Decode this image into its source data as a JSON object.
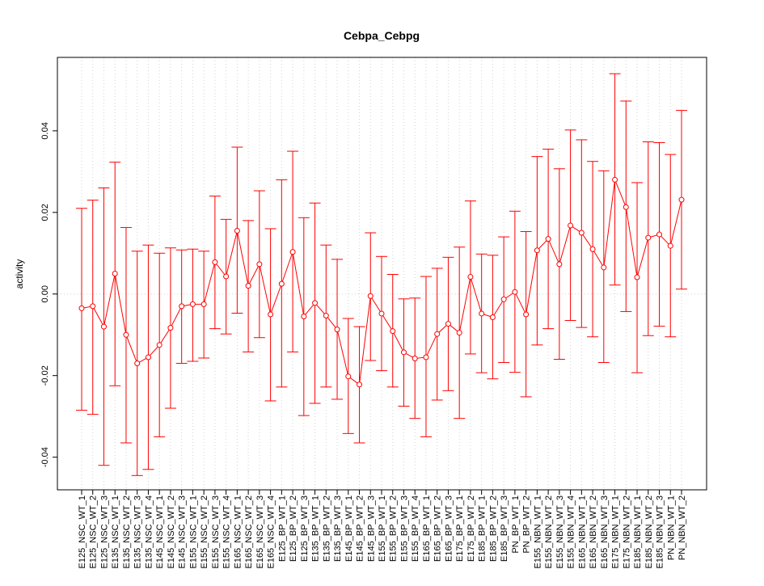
{
  "chart_data": {
    "type": "line",
    "title": "Cebpa_Cebpg",
    "xlabel": "",
    "ylabel": "activity",
    "ylim": [
      -0.048,
      0.058
    ],
    "yticks": [
      -0.04,
      -0.02,
      0.0,
      0.02,
      0.04
    ],
    "ytick_labels": [
      "-0.04",
      "-0.02",
      "0.00",
      "0.02",
      "0.04"
    ],
    "grid": true,
    "colors": {
      "series": "#ff0000",
      "grid": "#d3d3d3",
      "zero_line": "#d3d3d3"
    },
    "categories": [
      "E125_NSC_WT_1",
      "E125_NSC_WT_2",
      "E125_NSC_WT_3",
      "E135_NSC_WT_1",
      "E135_NSC_WT_2",
      "E135_NSC_WT_3",
      "E135_NSC_WT_4",
      "E145_NSC_WT_1",
      "E145_NSC_WT_2",
      "E145_NSC_WT_3",
      "E155_NSC_WT_1",
      "E155_NSC_WT_2",
      "E155_NSC_WT_3",
      "E155_NSC_WT_4",
      "E165_NSC_WT_1",
      "E165_NSC_WT_2",
      "E165_NSC_WT_3",
      "E165_NSC_WT_4",
      "E125_BP_WT_1",
      "E125_BP_WT_2",
      "E125_BP_WT_3",
      "E135_BP_WT_1",
      "E135_BP_WT_2",
      "E135_BP_WT_3",
      "E145_BP_WT_1",
      "E145_BP_WT_2",
      "E145_BP_WT_3",
      "E155_BP_WT_1",
      "E155_BP_WT_2",
      "E155_BP_WT_3",
      "E155_BP_WT_4",
      "E165_BP_WT_1",
      "E165_BP_WT_2",
      "E165_BP_WT_3",
      "E175_BP_WT_1",
      "E175_BP_WT_2",
      "E185_BP_WT_1",
      "E185_BP_WT_2",
      "E185_BP_WT_3",
      "PN_BP_WT_1",
      "PN_BP_WT_2",
      "E155_NBN_WT_1",
      "E155_NBN_WT_2",
      "E155_NBN_WT_3",
      "E155_NBN_WT_4",
      "E165_NBN_WT_1",
      "E165_NBN_WT_2",
      "E165_NBN_WT_3",
      "E175_NBN_WT_1",
      "E175_NBN_WT_2",
      "E185_NBN_WT_1",
      "E185_NBN_WT_2",
      "E185_NBN_WT_3",
      "PN_NBN_WT_1",
      "PN_NBN_WT_2"
    ],
    "series": [
      {
        "values": [
          -0.0035,
          -0.003,
          -0.008,
          0.005,
          -0.01,
          -0.017,
          -0.0155,
          -0.0125,
          -0.0083,
          -0.003,
          -0.0025,
          -0.0025,
          0.0078,
          0.0043,
          0.0155,
          0.002,
          0.0073,
          -0.005,
          0.0025,
          0.0103,
          -0.0055,
          -0.0022,
          -0.0053,
          -0.0087,
          -0.0202,
          -0.0222,
          -0.0005,
          -0.0048,
          -0.0091,
          -0.0143,
          -0.0158,
          -0.0155,
          -0.0098,
          -0.0073,
          -0.0095,
          0.0042,
          -0.0048,
          -0.0057,
          -0.0013,
          0.0005,
          -0.005,
          0.0107,
          0.0135,
          0.0073,
          0.0168,
          0.015,
          0.011,
          0.0065,
          0.028,
          0.0213,
          0.0041,
          0.0138,
          0.0146,
          0.0118,
          0.0231
        ],
        "lower": [
          -0.0285,
          -0.0295,
          -0.042,
          -0.0225,
          -0.0365,
          -0.0445,
          -0.043,
          -0.035,
          -0.028,
          -0.017,
          -0.0165,
          -0.0157,
          -0.0085,
          -0.0098,
          -0.0047,
          -0.0142,
          -0.0107,
          -0.0262,
          -0.0228,
          -0.0142,
          -0.0298,
          -0.0268,
          -0.0228,
          -0.0258,
          -0.0342,
          -0.0365,
          -0.0163,
          -0.0188,
          -0.0228,
          -0.0275,
          -0.0305,
          -0.035,
          -0.026,
          -0.0237,
          -0.0305,
          -0.0147,
          -0.0193,
          -0.0208,
          -0.0168,
          -0.0192,
          -0.0252,
          -0.0125,
          -0.0085,
          -0.016,
          -0.0065,
          -0.0082,
          -0.0105,
          -0.0168,
          0.0022,
          -0.0043,
          -0.0193,
          -0.0102,
          -0.0079,
          -0.0105,
          0.0012
        ],
        "upper": [
          0.021,
          0.023,
          0.026,
          0.0323,
          0.0163,
          0.0105,
          0.012,
          0.01,
          0.0113,
          0.0108,
          0.011,
          0.0105,
          0.024,
          0.0183,
          0.036,
          0.018,
          0.0253,
          0.016,
          0.028,
          0.035,
          0.0187,
          0.0223,
          0.012,
          0.0085,
          -0.006,
          -0.008,
          0.015,
          0.0092,
          0.0048,
          -0.0012,
          -0.001,
          0.0043,
          0.0063,
          0.009,
          0.0115,
          0.0228,
          0.0098,
          0.0095,
          0.014,
          0.0203,
          0.0153,
          0.0337,
          0.0355,
          0.0307,
          0.0402,
          0.0378,
          0.0325,
          0.0302,
          0.054,
          0.0473,
          0.0273,
          0.0373,
          0.0371,
          0.0342,
          0.045
        ]
      }
    ]
  }
}
